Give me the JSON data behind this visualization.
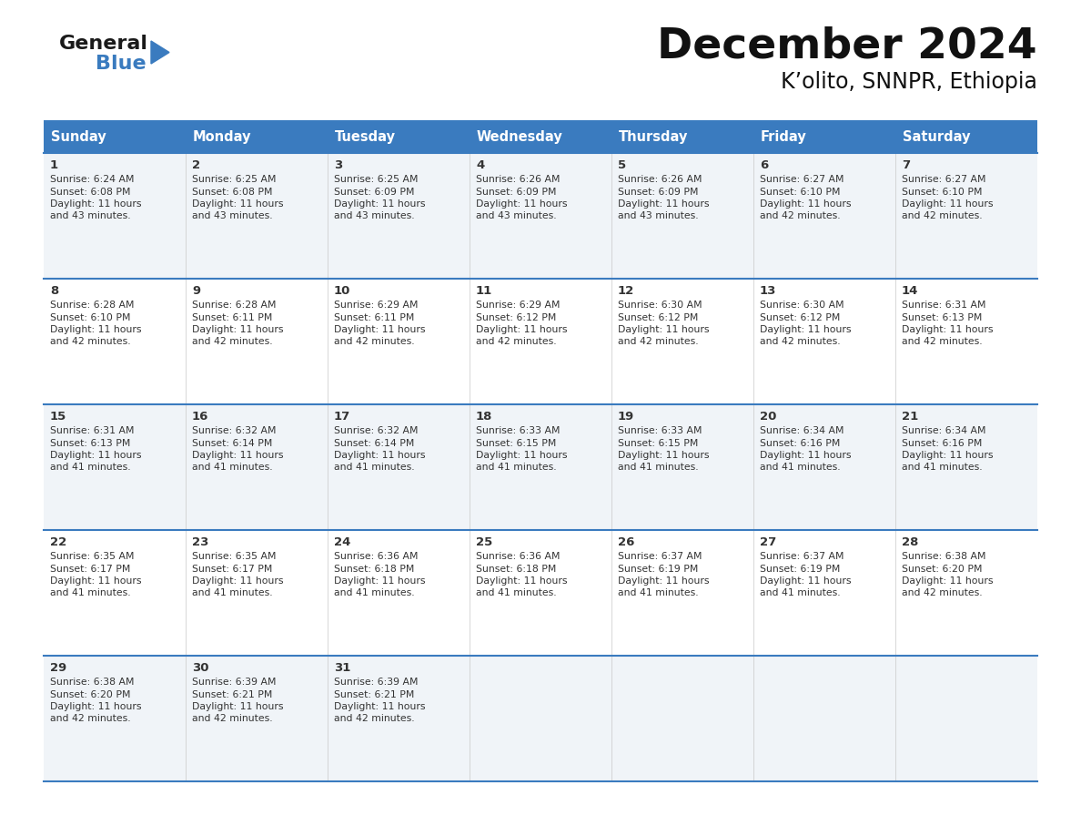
{
  "title": "December 2024",
  "subtitle": "K’olito, SNNPR, Ethiopia",
  "header_color": "#3a7bbf",
  "header_text_color": "#ffffff",
  "cell_bg_odd": "#f0f4f8",
  "cell_bg_even": "#ffffff",
  "cell_text_color": "#333333",
  "divider_color": "#3a7bbf",
  "days_of_week": [
    "Sunday",
    "Monday",
    "Tuesday",
    "Wednesday",
    "Thursday",
    "Friday",
    "Saturday"
  ],
  "weeks": [
    [
      {
        "day": 1,
        "sunrise": "6:24 AM",
        "sunset": "6:08 PM",
        "daylight": "11 hours and 43 minutes."
      },
      {
        "day": 2,
        "sunrise": "6:25 AM",
        "sunset": "6:08 PM",
        "daylight": "11 hours and 43 minutes."
      },
      {
        "day": 3,
        "sunrise": "6:25 AM",
        "sunset": "6:09 PM",
        "daylight": "11 hours and 43 minutes."
      },
      {
        "day": 4,
        "sunrise": "6:26 AM",
        "sunset": "6:09 PM",
        "daylight": "11 hours and 43 minutes."
      },
      {
        "day": 5,
        "sunrise": "6:26 AM",
        "sunset": "6:09 PM",
        "daylight": "11 hours and 43 minutes."
      },
      {
        "day": 6,
        "sunrise": "6:27 AM",
        "sunset": "6:10 PM",
        "daylight": "11 hours and 42 minutes."
      },
      {
        "day": 7,
        "sunrise": "6:27 AM",
        "sunset": "6:10 PM",
        "daylight": "11 hours and 42 minutes."
      }
    ],
    [
      {
        "day": 8,
        "sunrise": "6:28 AM",
        "sunset": "6:10 PM",
        "daylight": "11 hours and 42 minutes."
      },
      {
        "day": 9,
        "sunrise": "6:28 AM",
        "sunset": "6:11 PM",
        "daylight": "11 hours and 42 minutes."
      },
      {
        "day": 10,
        "sunrise": "6:29 AM",
        "sunset": "6:11 PM",
        "daylight": "11 hours and 42 minutes."
      },
      {
        "day": 11,
        "sunrise": "6:29 AM",
        "sunset": "6:12 PM",
        "daylight": "11 hours and 42 minutes."
      },
      {
        "day": 12,
        "sunrise": "6:30 AM",
        "sunset": "6:12 PM",
        "daylight": "11 hours and 42 minutes."
      },
      {
        "day": 13,
        "sunrise": "6:30 AM",
        "sunset": "6:12 PM",
        "daylight": "11 hours and 42 minutes."
      },
      {
        "day": 14,
        "sunrise": "6:31 AM",
        "sunset": "6:13 PM",
        "daylight": "11 hours and 42 minutes."
      }
    ],
    [
      {
        "day": 15,
        "sunrise": "6:31 AM",
        "sunset": "6:13 PM",
        "daylight": "11 hours and 41 minutes."
      },
      {
        "day": 16,
        "sunrise": "6:32 AM",
        "sunset": "6:14 PM",
        "daylight": "11 hours and 41 minutes."
      },
      {
        "day": 17,
        "sunrise": "6:32 AM",
        "sunset": "6:14 PM",
        "daylight": "11 hours and 41 minutes."
      },
      {
        "day": 18,
        "sunrise": "6:33 AM",
        "sunset": "6:15 PM",
        "daylight": "11 hours and 41 minutes."
      },
      {
        "day": 19,
        "sunrise": "6:33 AM",
        "sunset": "6:15 PM",
        "daylight": "11 hours and 41 minutes."
      },
      {
        "day": 20,
        "sunrise": "6:34 AM",
        "sunset": "6:16 PM",
        "daylight": "11 hours and 41 minutes."
      },
      {
        "day": 21,
        "sunrise": "6:34 AM",
        "sunset": "6:16 PM",
        "daylight": "11 hours and 41 minutes."
      }
    ],
    [
      {
        "day": 22,
        "sunrise": "6:35 AM",
        "sunset": "6:17 PM",
        "daylight": "11 hours and 41 minutes."
      },
      {
        "day": 23,
        "sunrise": "6:35 AM",
        "sunset": "6:17 PM",
        "daylight": "11 hours and 41 minutes."
      },
      {
        "day": 24,
        "sunrise": "6:36 AM",
        "sunset": "6:18 PM",
        "daylight": "11 hours and 41 minutes."
      },
      {
        "day": 25,
        "sunrise": "6:36 AM",
        "sunset": "6:18 PM",
        "daylight": "11 hours and 41 minutes."
      },
      {
        "day": 26,
        "sunrise": "6:37 AM",
        "sunset": "6:19 PM",
        "daylight": "11 hours and 41 minutes."
      },
      {
        "day": 27,
        "sunrise": "6:37 AM",
        "sunset": "6:19 PM",
        "daylight": "11 hours and 41 minutes."
      },
      {
        "day": 28,
        "sunrise": "6:38 AM",
        "sunset": "6:20 PM",
        "daylight": "11 hours and 42 minutes."
      }
    ],
    [
      {
        "day": 29,
        "sunrise": "6:38 AM",
        "sunset": "6:20 PM",
        "daylight": "11 hours and 42 minutes."
      },
      {
        "day": 30,
        "sunrise": "6:39 AM",
        "sunset": "6:21 PM",
        "daylight": "11 hours and 42 minutes."
      },
      {
        "day": 31,
        "sunrise": "6:39 AM",
        "sunset": "6:21 PM",
        "daylight": "11 hours and 42 minutes."
      },
      null,
      null,
      null,
      null
    ]
  ],
  "logo_text1": "General",
  "logo_text2": "Blue",
  "logo_triangle_color": "#3a7bbf",
  "fig_width": 11.88,
  "fig_height": 9.18,
  "dpi": 100
}
